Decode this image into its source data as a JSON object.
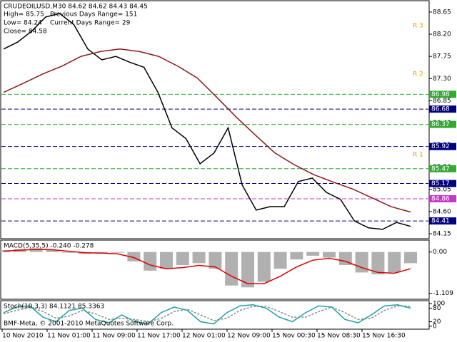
{
  "chart_data": [
    {
      "type": "line",
      "title": "CRUDEOILUSD,M30  84.62 84.62 84.43 84.45",
      "annotations": [
        "High= 85.75",
        "Previous Days Range= 151",
        "Low= 84.24",
        "Current Days Range= 29",
        "Close= 84.58"
      ],
      "level_names": [
        "R 3",
        "R 2",
        "R 1"
      ],
      "ylim": [
        84.05,
        88.88
      ],
      "yticks": [
        88.65,
        {
          "value": 88.2,
          "label": "88.20"
        },
        87.75,
        {
          "value": 87.3,
          "label": "87.30"
        },
        86.85,
        {
          "value": 86.4,
          "label": "86.40"
        },
        85.95,
        {
          "value": 85.5,
          "label": "85.50"
        },
        85.05,
        {
          "value": 84.6,
          "label": "84.60"
        },
        84.15
      ],
      "levels": [
        {
          "value": 86.98,
          "color": "#33aa33"
        },
        {
          "value": 86.68,
          "color": "#000080"
        },
        {
          "value": 86.37,
          "color": "#33aa33"
        },
        {
          "value": 85.92,
          "color": "#000080"
        },
        {
          "value": 85.47,
          "color": "#33aa33"
        },
        {
          "value": 85.17,
          "color": "#000080"
        },
        {
          "value": 84.86,
          "color": "#cc33cc"
        },
        {
          "value": 84.41,
          "color": "#000080"
        }
      ],
      "series": [
        {
          "color": "#000000",
          "values": [
            87.9,
            88.04,
            88.26,
            88.55,
            88.62,
            88.4,
            87.9,
            87.68,
            87.75,
            87.63,
            87.53,
            87.02,
            86.3,
            86.08,
            85.57,
            85.79,
            86.3,
            85.14,
            84.63,
            84.7,
            84.7,
            85.21,
            85.28,
            84.99,
            84.85,
            84.41,
            84.27,
            84.24,
            84.38,
            84.3
          ]
        },
        {
          "color": "#8b1a1a",
          "values": [
            87.02,
            87.2,
            87.39,
            87.55,
            87.75,
            87.85,
            87.9,
            87.85,
            87.75,
            87.55,
            87.31,
            86.92,
            86.52,
            86.15,
            85.79,
            85.55,
            85.35,
            85.2,
            85.06,
            84.88,
            84.7,
            84.59
          ]
        }
      ]
    },
    {
      "type": "macd",
      "title": "MACD(5,35,5) -0.240 -0.278",
      "ylim": [
        -1.25,
        0.3
      ],
      "yticks": [
        {
          "value": 0,
          "label": "0.00"
        },
        -1.109
      ],
      "histogram": {
        "color": "#b0b0b0",
        "values": [
          0.05,
          0.08,
          0.1,
          0.06,
          -0.02,
          -0.05,
          -0.03,
          -0.02,
          -0.25,
          -0.5,
          -0.45,
          -0.35,
          -0.3,
          -0.45,
          -0.9,
          -0.95,
          -0.8,
          -0.45,
          -0.2,
          -0.1,
          -0.15,
          -0.35,
          -0.55,
          -0.6,
          -0.55,
          -0.3
        ]
      },
      "signal": {
        "color": "#dd0000",
        "values": [
          0.02,
          0.05,
          0.07,
          0.06,
          0.02,
          -0.02,
          -0.03,
          -0.05,
          -0.15,
          -0.35,
          -0.45,
          -0.42,
          -0.36,
          -0.4,
          -0.65,
          -0.85,
          -0.85,
          -0.65,
          -0.4,
          -0.22,
          -0.17,
          -0.25,
          -0.42,
          -0.55,
          -0.57,
          -0.45
        ]
      }
    },
    {
      "type": "stoch",
      "title": "Stoch(10,3,3) 84.1121 85.3363",
      "ylim": [
        -10,
        110
      ],
      "yticks": [
        100,
        80,
        20,
        0
      ],
      "main": {
        "color": "#20a0a0",
        "values": [
          60,
          85,
          90,
          40,
          20,
          70,
          80,
          30,
          15,
          50,
          20,
          10,
          60,
          85,
          70,
          20,
          10,
          60,
          90,
          95,
          80,
          40,
          20,
          60,
          90,
          85,
          30,
          15,
          50,
          90,
          95,
          80
        ]
      },
      "signal": {
        "color": "#888888",
        "values": [
          55,
          70,
          85,
          65,
          35,
          45,
          70,
          55,
          30,
          35,
          30,
          20,
          35,
          65,
          75,
          50,
          25,
          35,
          70,
          88,
          88,
          65,
          40,
          40,
          65,
          85,
          60,
          30,
          35,
          70,
          90,
          88
        ]
      }
    }
  ],
  "time_labels": [
    "10 Nov 2010",
    "11 Nov 01:00",
    "11 Nov 09:00",
    "11 Nov 17:00",
    "12 Nov 01:00",
    "12 Nov 09:00",
    "15 Nov 00:30",
    "15 Nov 08:30",
    "15 Nov 16:30"
  ],
  "copyright": "BMF-Meta, © 2001-2010 MetaQuotes Software Corp."
}
